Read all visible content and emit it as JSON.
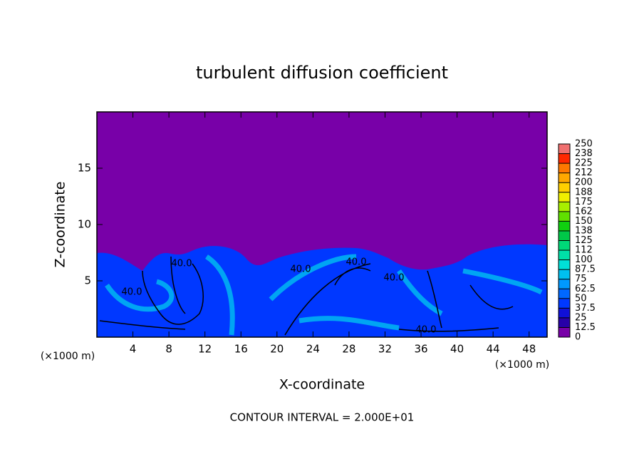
{
  "chart_data": {
    "type": "contour",
    "title": "turbulent diffusion coefficient",
    "xlabel": "X-coordinate",
    "ylabel": "Z-coordinate",
    "x_unit": "(×1000 m)",
    "note": "CONTOUR INTERVAL = 2.000E+01",
    "xlim": [
      0,
      50
    ],
    "xticks": [
      4,
      8,
      12,
      16,
      20,
      24,
      28,
      32,
      36,
      40,
      44,
      48
    ],
    "ylim": [
      0,
      20
    ],
    "yticks": [
      5,
      10,
      15
    ],
    "contour_labels": [
      "40.0",
      "40.0",
      "40.0",
      "40.0",
      "40.0",
      "40.0"
    ],
    "colorbar": {
      "levels": [
        0,
        12.5,
        25,
        37.5,
        50,
        62.5,
        75,
        87.5,
        100,
        {
          "value": 112.5,
          "label": "112"
        },
        125,
        {
          "value": 137.5,
          "label": "138"
        },
        150,
        {
          "value": 162.5,
          "label": "162"
        },
        175,
        {
          "value": 187.5,
          "label": "188"
        },
        200,
        {
          "value": 212.5,
          "label": "212"
        },
        225,
        {
          "value": 237.5,
          "label": "238"
        },
        250
      ],
      "colors": [
        "#7800a8",
        "#2800a8",
        "#1010d8",
        "#0038ff",
        "#0068ff",
        "#0098ff",
        "#00c0f0",
        "#00e0d8",
        "#00e0a8",
        "#00d878",
        "#00c848",
        "#10d010",
        "#60e000",
        "#a8f000",
        "#f0f000",
        "#ffd000",
        "#ffa800",
        "#ff7800",
        "#ff2800",
        "#f07070"
      ]
    }
  }
}
